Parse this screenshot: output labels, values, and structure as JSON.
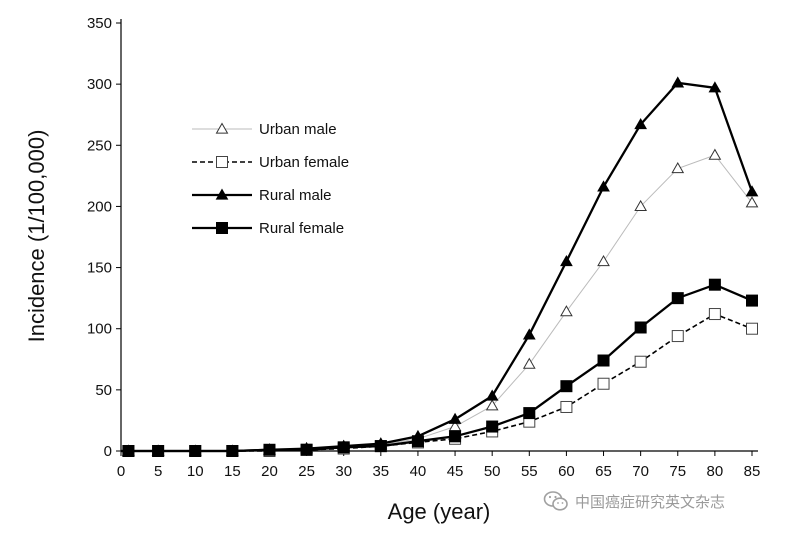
{
  "chart_data": {
    "type": "line",
    "xlabel": "Age (year)",
    "ylabel": "Incidence (1/100,000)",
    "xlim": [
      0,
      85
    ],
    "ylim": [
      0,
      350
    ],
    "xticks": [
      0,
      5,
      10,
      15,
      20,
      25,
      30,
      35,
      40,
      45,
      50,
      55,
      60,
      65,
      70,
      75,
      80,
      85
    ],
    "yticks": [
      0,
      50,
      100,
      150,
      200,
      250,
      300,
      350
    ],
    "grid": false,
    "legend_position": "upper-left",
    "series": [
      {
        "name": "Urban male",
        "marker": "open-triangle",
        "line": "solid-thin",
        "color": "#bbbbbb",
        "x": [
          0,
          1,
          5,
          10,
          15,
          20,
          25,
          30,
          35,
          40,
          45,
          50,
          55,
          60,
          65,
          70,
          75,
          80,
          85
        ],
        "y": [
          0,
          0,
          0,
          0,
          0,
          1,
          2,
          3,
          5,
          10,
          20,
          37,
          71,
          114,
          155,
          200,
          231,
          242,
          203
        ]
      },
      {
        "name": "Urban female",
        "marker": "open-square",
        "line": "dashed",
        "color": "#000000",
        "x": [
          0,
          1,
          5,
          10,
          15,
          20,
          25,
          30,
          35,
          40,
          45,
          50,
          55,
          60,
          65,
          70,
          75,
          80,
          85
        ],
        "y": [
          0,
          0,
          0,
          0,
          0,
          0,
          1,
          2,
          4,
          7,
          10,
          16,
          24,
          36,
          55,
          73,
          94,
          112,
          100
        ]
      },
      {
        "name": "Rural male",
        "marker": "filled-triangle",
        "line": "solid-thick",
        "color": "#000000",
        "x": [
          0,
          1,
          5,
          10,
          15,
          20,
          25,
          30,
          35,
          40,
          45,
          50,
          55,
          60,
          65,
          70,
          75,
          80,
          85
        ],
        "y": [
          0,
          0,
          0,
          0,
          0,
          1,
          2,
          4,
          6,
          12,
          26,
          45,
          95,
          155,
          216,
          267,
          301,
          297,
          212
        ]
      },
      {
        "name": "Rural female",
        "marker": "filled-square",
        "line": "solid-thick",
        "color": "#000000",
        "x": [
          0,
          1,
          5,
          10,
          15,
          20,
          25,
          30,
          35,
          40,
          45,
          50,
          55,
          60,
          65,
          70,
          75,
          80,
          85
        ],
        "y": [
          0,
          0,
          0,
          0,
          0,
          1,
          1,
          3,
          4,
          8,
          12,
          20,
          31,
          53,
          74,
          101,
          125,
          136,
          123
        ]
      }
    ]
  },
  "watermark": {
    "text": "中国癌症研究英文杂志",
    "icon": "wechat-icon"
  }
}
